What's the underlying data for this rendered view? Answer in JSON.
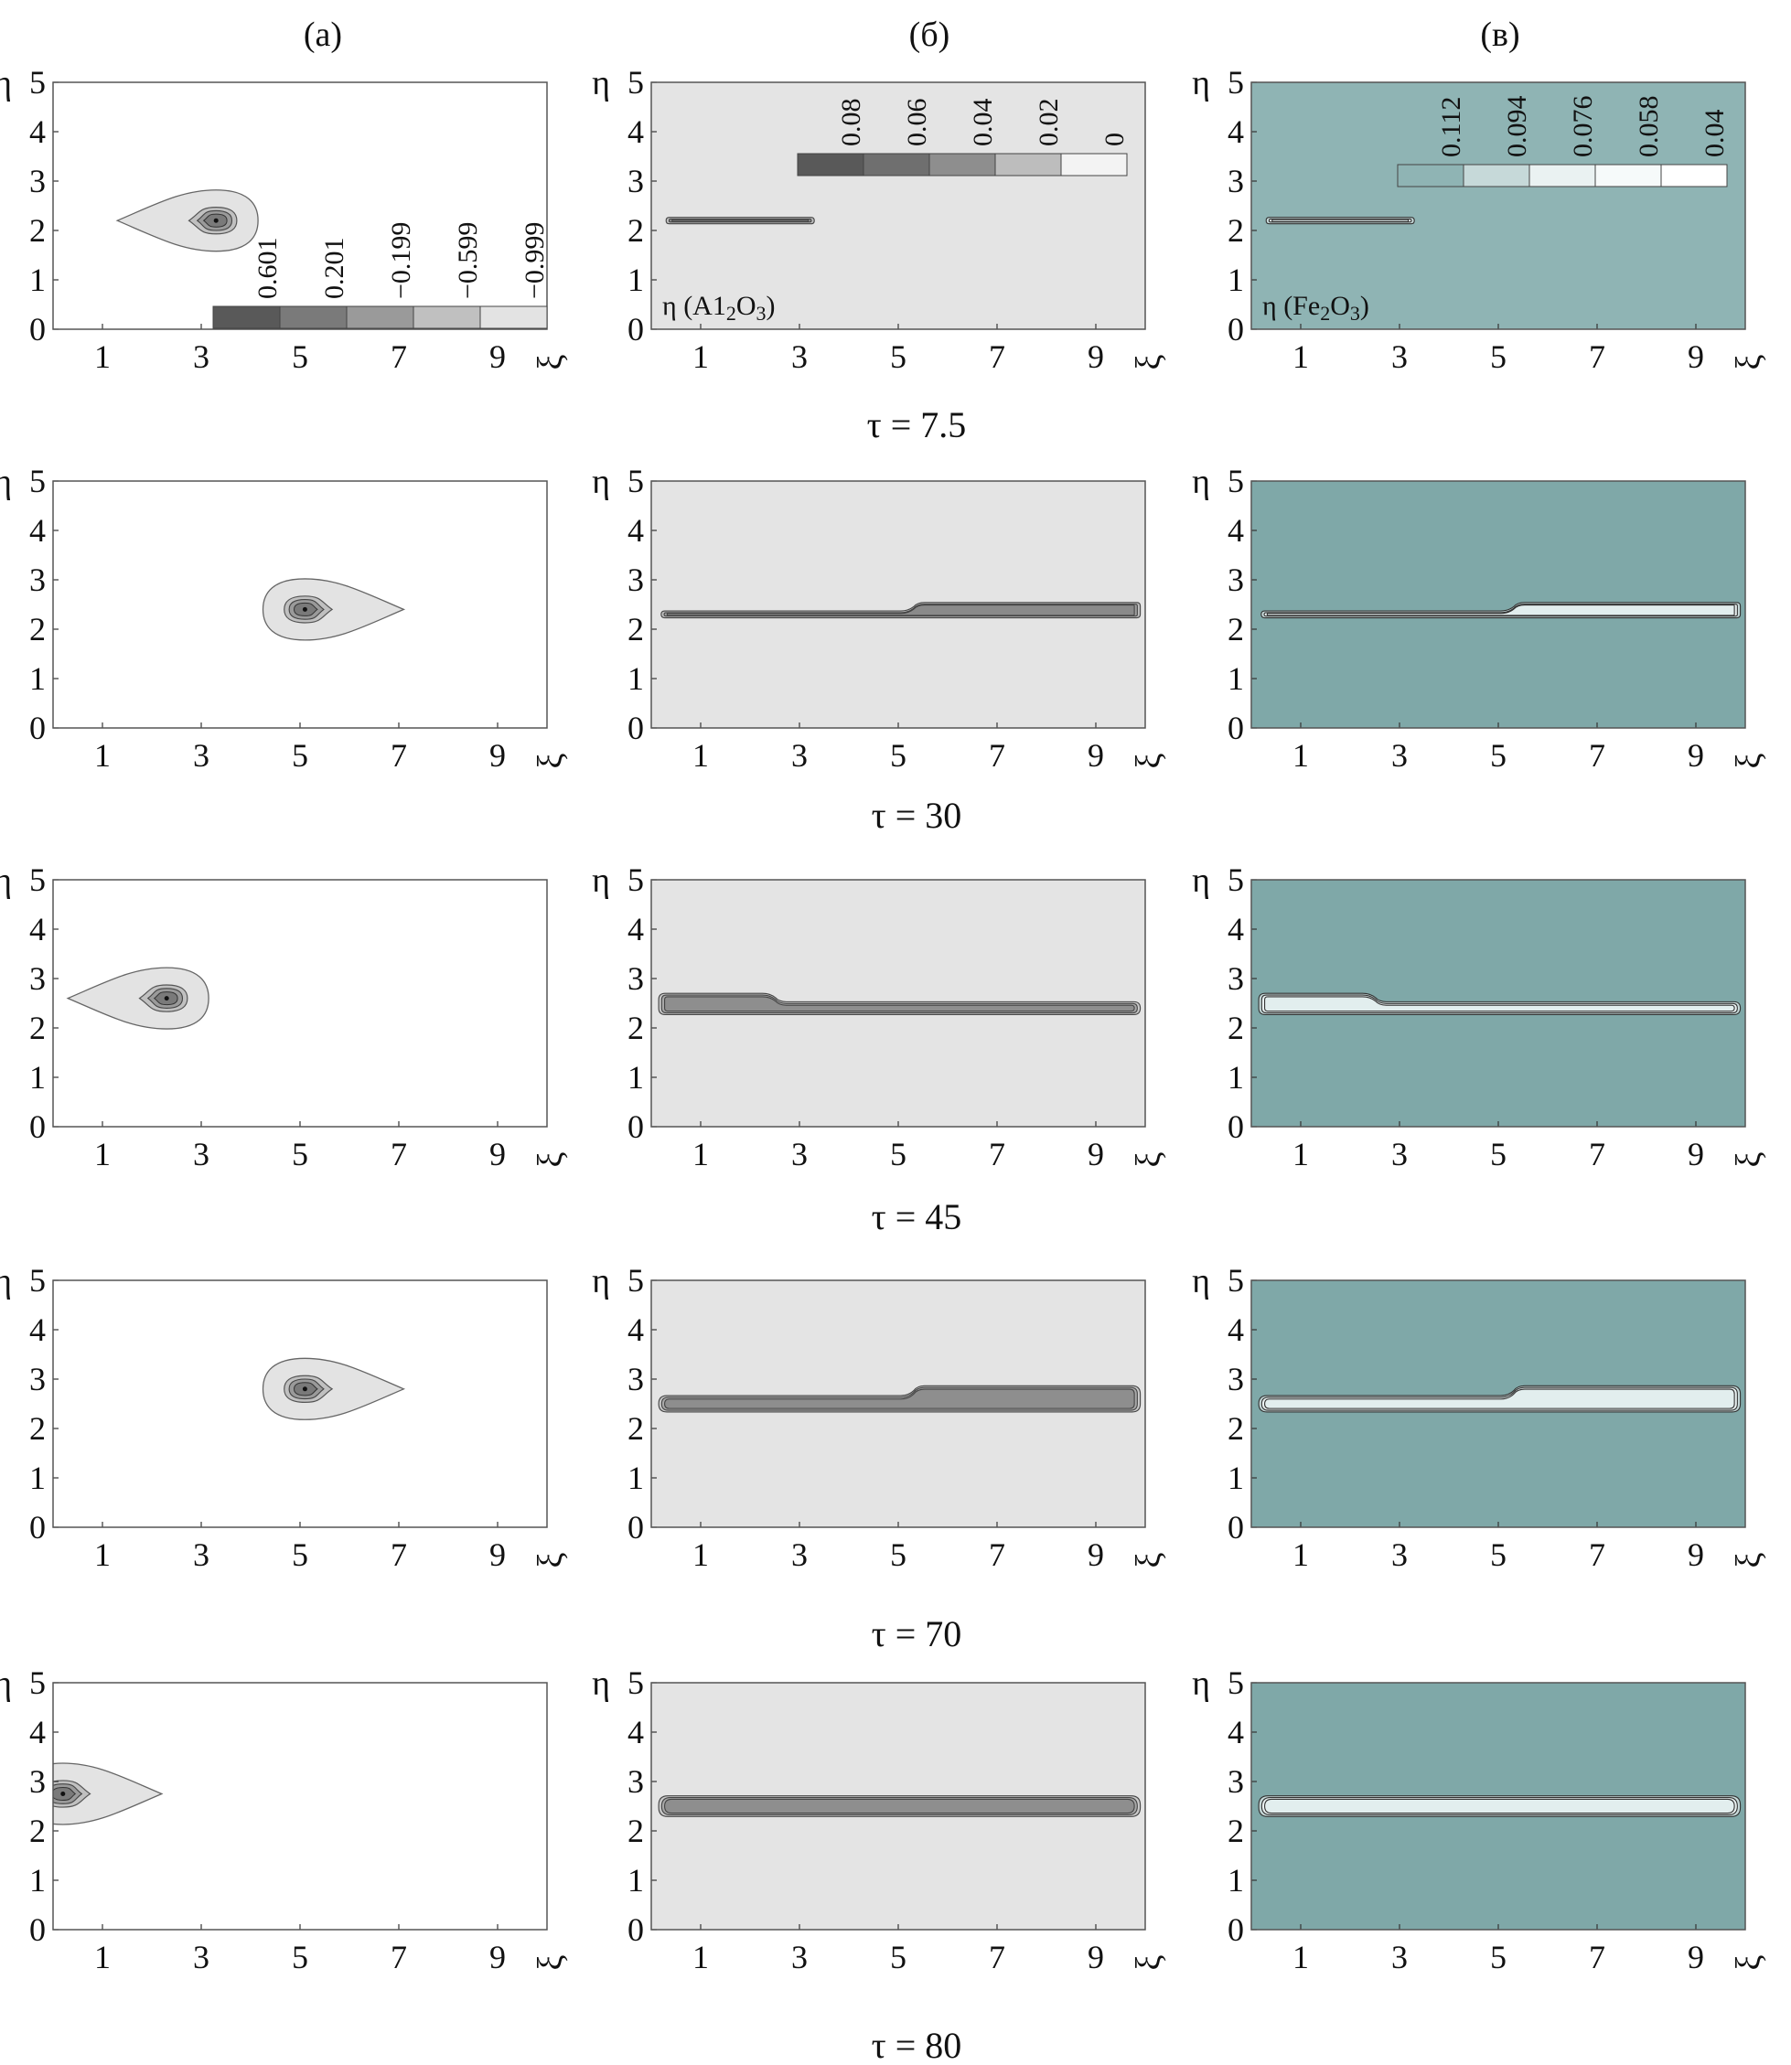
{
  "columns": [
    {
      "id": "a",
      "label": "(а)"
    },
    {
      "id": "b",
      "label": "(б)"
    },
    {
      "id": "c",
      "label": "(в)"
    }
  ],
  "tau_labels": [
    "τ = 7.5",
    "τ = 30",
    "τ = 45",
    "τ = 70",
    "τ = 80"
  ],
  "axes": {
    "x_ticks": [
      1,
      3,
      5,
      7,
      9
    ],
    "y_ticks": [
      0,
      1,
      2,
      3,
      4,
      5
    ],
    "x_label": "ξ",
    "y_label": "η",
    "x_range": [
      0,
      10
    ],
    "y_range": [
      0,
      5
    ]
  },
  "inset_labels": {
    "b": {
      "prefix": "η (A",
      "sub1": "1",
      "mid": "1",
      "sub2": "2",
      "o": "O",
      "sub3": "3",
      "suffix": ")"
    },
    "c": {
      "prefix": "η (Fe",
      "sub1": "2",
      "o": "O",
      "sub2": "3",
      "suffix": ")"
    }
  },
  "colors": {
    "panel_a_bg": "#ffffff",
    "panel_b_bg": "#e4e4e4",
    "panel_c_bg_first": "#8fb4b4",
    "panel_c_bg": "#7fa8a8"
  },
  "chart_data": [
    {
      "type": "heatmap",
      "panel": "a",
      "legend": {
        "labels": [
          "0.601",
          "0.201",
          "−0.199",
          "−0.599",
          "−0.999"
        ],
        "colors": [
          "#595959",
          "#7a7a7a",
          "#9a9a9a",
          "#c0c0c0",
          "#e3e3e3"
        ]
      },
      "drop_center_per_row": [
        {
          "tau": "7.5",
          "xi": 3.3,
          "eta": 2.2
        },
        {
          "tau": "30",
          "xi": 5.1,
          "eta": 2.4
        },
        {
          "tau": "45",
          "xi": 2.3,
          "eta": 2.6
        },
        {
          "tau": "70",
          "xi": 5.1,
          "eta": 2.8
        },
        {
          "tau": "80",
          "xi": 0.2,
          "eta": 2.75
        }
      ]
    },
    {
      "type": "heatmap",
      "panel": "b",
      "legend": {
        "labels": [
          "0.08",
          "0.06",
          "0.04",
          "0.02",
          "0"
        ],
        "colors": [
          "#595959",
          "#6f6f6f",
          "#8e8e8e",
          "#bdbdbd",
          "#f3f3f3"
        ]
      }
    },
    {
      "type": "heatmap",
      "panel": "c",
      "legend": {
        "labels": [
          "0.112",
          "0.094",
          "0.076",
          "0.058",
          "0.04"
        ],
        "colors": [
          "#8fb4b4",
          "#c6d9d9",
          "#eaf2f2",
          "#f6fafa",
          "#ffffff"
        ]
      }
    }
  ]
}
